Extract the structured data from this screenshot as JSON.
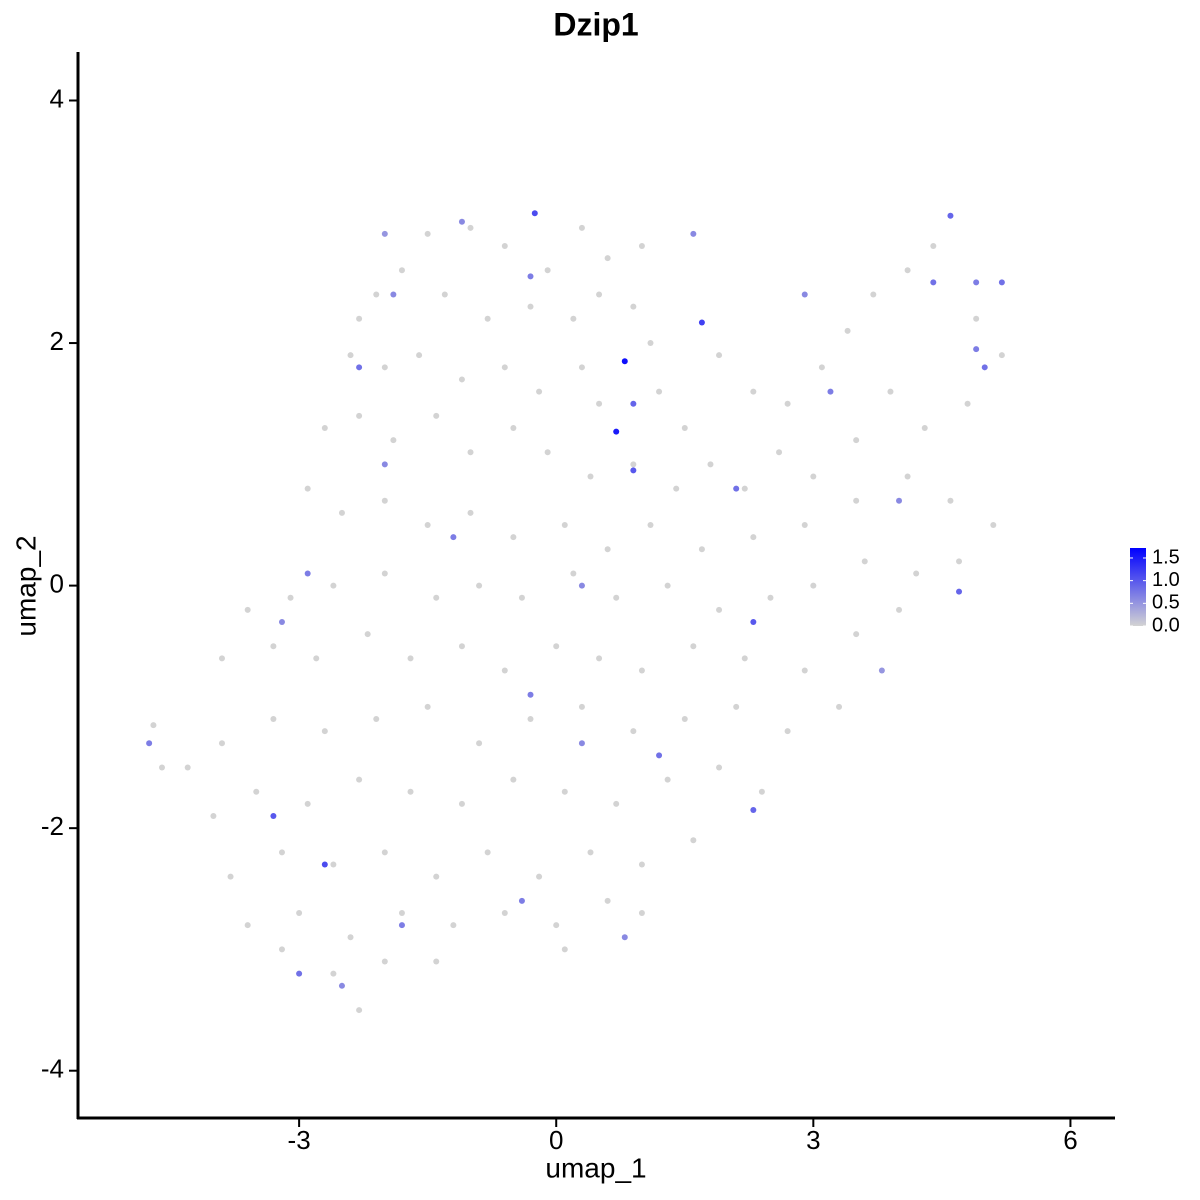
{
  "chart_data": {
    "type": "scatter",
    "title": "Dzip1",
    "x_label": "umap_1",
    "y_label": "umap_2",
    "xlim": [
      -5.58,
      6.52
    ],
    "ylim": [
      -4.39,
      4.4
    ],
    "xticks": [
      -3,
      0,
      3,
      6
    ],
    "yticks": [
      -4,
      -2,
      0,
      2,
      4
    ],
    "color_low": "#d3d3d3",
    "color_high": "#0000ff",
    "colorlim": [
      0,
      1.72
    ],
    "colorticks": [
      {
        "value": 0,
        "label": "0.0"
      },
      0.5,
      {
        "value": 1,
        "label": "1.0"
      },
      1.5
    ],
    "x": [
      -1.5,
      -1.0,
      -0.6,
      -0.1,
      0.3,
      0.6,
      1.0,
      -1.8,
      -2.1,
      -2.3,
      -1.3,
      -0.8,
      -0.3,
      0.2,
      0.5,
      0.9,
      1.1,
      -2.4,
      -2.0,
      -1.6,
      -1.1,
      -0.6,
      -0.2,
      0.3,
      0.5,
      1.2,
      1.5,
      1.9,
      2.3,
      2.7,
      3.1,
      3.4,
      3.7,
      4.1,
      4.4,
      4.9,
      5.2,
      4.8,
      4.3,
      3.9,
      3.5,
      3.0,
      2.6,
      2.2,
      1.8,
      1.4,
      0.9,
      0.4,
      -0.1,
      -0.5,
      -1.0,
      -1.4,
      -1.9,
      -2.3,
      -2.7,
      -2.9,
      -2.5,
      -2.0,
      -1.5,
      -1.0,
      -0.5,
      0.1,
      0.6,
      1.1,
      1.7,
      2.3,
      2.9,
      3.5,
      4.1,
      4.6,
      5.1,
      4.7,
      4.2,
      3.6,
      3.0,
      2.5,
      1.9,
      1.3,
      0.7,
      0.2,
      -0.4,
      -0.9,
      -1.4,
      -2.0,
      -2.6,
      -3.1,
      -3.6,
      -3.9,
      -3.3,
      -2.8,
      -2.2,
      -1.7,
      -1.1,
      -0.6,
      0.0,
      0.5,
      1.0,
      1.6,
      2.2,
      2.9,
      3.5,
      4.0,
      3.3,
      2.7,
      2.1,
      1.5,
      0.9,
      0.3,
      -0.3,
      -0.9,
      -1.5,
      -2.1,
      -2.7,
      -3.3,
      -3.9,
      -4.3,
      -4.6,
      -4.7,
      -4.0,
      -3.5,
      -2.9,
      -2.3,
      -1.7,
      -1.1,
      -0.5,
      0.1,
      0.7,
      1.3,
      1.9,
      2.4,
      1.6,
      1.0,
      0.4,
      -0.2,
      -0.8,
      -1.4,
      -2.0,
      -2.6,
      -3.2,
      -3.8,
      -3.6,
      -3.0,
      -2.4,
      -1.8,
      -1.2,
      -0.6,
      0.0,
      0.6,
      1.0,
      -2.0,
      -2.6,
      -3.2,
      -2.3,
      -1.4,
      0.1,
      -0.25,
      -1.1,
      -1.9,
      4.6,
      4.4,
      4.9,
      5.2,
      4.9,
      -2.0,
      -0.3,
      1.6,
      0.9,
      0.9,
      2.1,
      3.2,
      -2.9,
      -3.2,
      -4.75,
      -3.3,
      -2.7,
      -0.3,
      0.3,
      1.2,
      2.3,
      2.3,
      4.7,
      4.0,
      -1.8,
      -3.0,
      -2.5,
      0.8,
      -0.4,
      -2.0,
      -1.2,
      0.3,
      -2.3,
      3.8,
      2.9,
      5.0,
      1.7,
      0.7,
      0.8
    ],
    "y": [
      2.9,
      2.95,
      2.8,
      2.6,
      2.95,
      2.7,
      2.8,
      2.6,
      2.4,
      2.2,
      2.4,
      2.2,
      2.3,
      2.2,
      2.4,
      2.3,
      2.0,
      1.9,
      1.8,
      1.9,
      1.7,
      1.8,
      1.6,
      1.8,
      1.5,
      1.6,
      1.3,
      1.9,
      1.6,
      1.5,
      1.8,
      2.1,
      2.4,
      2.6,
      2.8,
      2.2,
      1.9,
      1.5,
      1.3,
      1.6,
      1.2,
      0.9,
      1.1,
      0.8,
      1.0,
      0.8,
      1.0,
      0.9,
      1.1,
      1.3,
      1.1,
      1.4,
      1.2,
      1.4,
      1.3,
      0.8,
      0.6,
      0.7,
      0.5,
      0.6,
      0.4,
      0.5,
      0.3,
      0.5,
      0.3,
      0.4,
      0.5,
      0.7,
      0.9,
      0.7,
      0.5,
      0.2,
      0.1,
      0.2,
      0.0,
      -0.1,
      -0.2,
      0.0,
      -0.1,
      0.1,
      -0.1,
      0.0,
      -0.1,
      0.1,
      0.0,
      -0.1,
      -0.2,
      -0.6,
      -0.5,
      -0.6,
      -0.4,
      -0.6,
      -0.5,
      -0.7,
      -0.5,
      -0.6,
      -0.7,
      -0.5,
      -0.6,
      -0.7,
      -0.4,
      -0.2,
      -1.0,
      -1.2,
      -1.0,
      -1.1,
      -1.2,
      -1.0,
      -1.1,
      -1.3,
      -1.0,
      -1.1,
      -1.2,
      -1.1,
      -1.3,
      -1.5,
      -1.5,
      -1.15,
      -1.9,
      -1.7,
      -1.8,
      -1.6,
      -1.7,
      -1.8,
      -1.6,
      -1.7,
      -1.8,
      -1.6,
      -1.5,
      -1.7,
      -2.1,
      -2.3,
      -2.2,
      -2.4,
      -2.2,
      -2.4,
      -2.2,
      -2.3,
      -2.2,
      -2.4,
      -2.8,
      -2.7,
      -2.9,
      -2.7,
      -2.8,
      -2.7,
      -2.8,
      -2.6,
      -2.7,
      -3.1,
      -3.2,
      -3.0,
      -3.5,
      -3.1,
      -3.0,
      3.07,
      3.0,
      2.4,
      3.05,
      2.5,
      2.5,
      2.5,
      1.95,
      2.9,
      2.55,
      2.9,
      0.95,
      1.5,
      0.8,
      1.6,
      0.1,
      -0.3,
      -1.3,
      -1.9,
      -2.3,
      -0.9,
      -1.3,
      -1.4,
      -1.85,
      -0.3,
      -0.05,
      0.7,
      -2.8,
      -3.2,
      -3.3,
      -2.9,
      -2.6,
      1.0,
      0.4,
      0.0,
      1.8,
      -0.7,
      2.4,
      1.8,
      2.17,
      1.27,
      1.85
    ],
    "values": [
      0,
      0,
      0,
      0,
      0,
      0,
      0,
      0,
      0,
      0,
      0,
      0,
      0,
      0,
      0,
      0,
      0,
      0,
      0,
      0,
      0,
      0,
      0,
      0,
      0,
      0,
      0,
      0,
      0,
      0,
      0,
      0,
      0,
      0,
      0,
      0,
      0,
      0,
      0,
      0,
      0,
      0,
      0,
      0,
      0,
      0,
      0,
      0,
      0,
      0,
      0,
      0,
      0,
      0,
      0,
      0,
      0,
      0,
      0,
      0,
      0,
      0,
      0,
      0,
      0,
      0,
      0,
      0,
      0,
      0,
      0,
      0,
      0,
      0,
      0,
      0,
      0,
      0,
      0,
      0,
      0,
      0,
      0,
      0,
      0,
      0,
      0,
      0,
      0,
      0,
      0,
      0,
      0,
      0,
      0,
      0,
      0,
      0,
      0,
      0,
      0,
      0,
      0,
      0,
      0,
      0,
      0,
      0,
      0,
      0,
      0,
      0,
      0,
      0,
      0,
      0,
      0,
      0,
      0,
      0,
      0,
      0,
      0,
      0,
      0,
      0,
      0,
      0,
      0,
      0,
      0,
      0,
      0,
      0,
      0,
      0,
      0,
      0,
      0,
      0,
      0,
      0,
      0,
      0,
      0,
      0,
      0,
      0,
      0,
      0,
      0,
      0,
      0,
      0,
      0,
      1.1,
      0.6,
      0.6,
      0.9,
      0.8,
      0.7,
      0.8,
      0.7,
      0.5,
      0.7,
      0.6,
      1.0,
      0.9,
      0.8,
      0.7,
      0.7,
      0.6,
      0.7,
      1.0,
      1.1,
      0.7,
      0.6,
      0.8,
      0.9,
      1.0,
      0.9,
      0.6,
      0.7,
      0.8,
      0.6,
      0.6,
      0.7,
      0.6,
      0.7,
      0.6,
      0.8,
      0.5,
      0.6,
      0.8,
      1.2,
      1.5,
      1.6
    ]
  }
}
